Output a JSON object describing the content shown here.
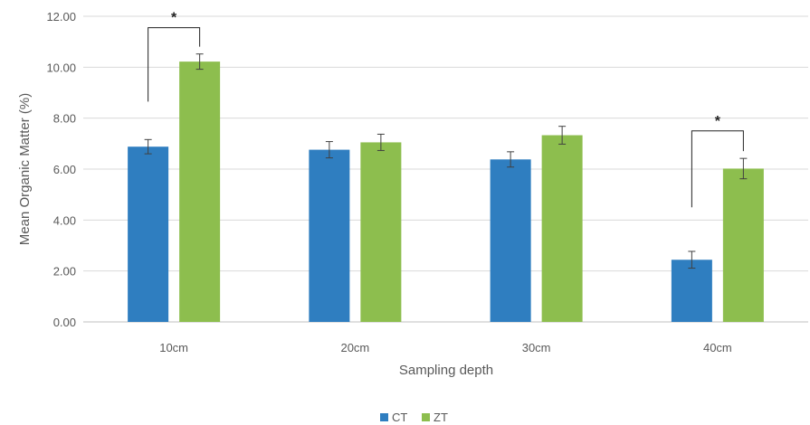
{
  "chart_data": {
    "type": "bar",
    "categories": [
      "10cm",
      "20cm",
      "30cm",
      "40cm"
    ],
    "series": [
      {
        "name": "CT",
        "color": "#2F7EC0",
        "values": [
          6.88,
          6.76,
          6.38,
          2.44
        ],
        "errors": [
          0.28,
          0.32,
          0.3,
          0.33
        ]
      },
      {
        "name": "ZT",
        "color": "#8DBE4E",
        "values": [
          10.22,
          7.05,
          7.33,
          6.02
        ],
        "errors": [
          0.3,
          0.32,
          0.35,
          0.4
        ]
      }
    ],
    "title": "",
    "xlabel": "Sampling depth",
    "ylabel": "Mean Organic Matter (%)",
    "ylim": [
      0,
      12
    ],
    "yticks": [
      "0.00",
      "2.00",
      "4.00",
      "6.00",
      "8.00",
      "10.00",
      "12.00"
    ],
    "grid": true,
    "legend": "bottom",
    "annotations": [
      {
        "category": "10cm",
        "label": "*",
        "bracket_low": 8.65,
        "bracket_high": 11.55
      },
      {
        "category": "40cm",
        "label": "*",
        "bracket_low": 4.5,
        "bracket_high": 7.5
      }
    ]
  }
}
